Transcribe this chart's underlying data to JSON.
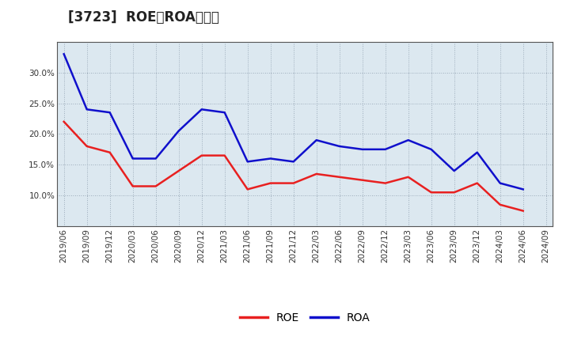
{
  "title": "[3723]  ROE、ROAの推移",
  "x_labels": [
    "2019/06",
    "2019/09",
    "2019/12",
    "2020/03",
    "2020/06",
    "2020/09",
    "2020/12",
    "2021/03",
    "2021/06",
    "2021/09",
    "2021/12",
    "2022/03",
    "2022/06",
    "2022/09",
    "2022/12",
    "2023/03",
    "2023/06",
    "2023/09",
    "2023/12",
    "2024/03",
    "2024/06",
    "2024/09"
  ],
  "roe": [
    22.0,
    18.0,
    17.0,
    11.5,
    11.5,
    14.0,
    16.5,
    16.5,
    11.0,
    12.0,
    12.0,
    13.5,
    13.0,
    12.5,
    12.0,
    13.0,
    10.5,
    10.5,
    12.0,
    8.5,
    7.5,
    null
  ],
  "roa": [
    33.0,
    24.0,
    23.5,
    16.0,
    16.0,
    20.5,
    24.0,
    23.5,
    15.5,
    16.0,
    15.5,
    19.0,
    18.0,
    17.5,
    17.5,
    19.0,
    17.5,
    14.0,
    17.0,
    12.0,
    11.0,
    null
  ],
  "roe_color": "#e82020",
  "roa_color": "#1010cc",
  "background_color": "#ffffff",
  "plot_bg_color": "#dce8f0",
  "grid_color": "#8899aa",
  "ylim": [
    5.0,
    35.0
  ],
  "yticks": [
    10.0,
    15.0,
    20.0,
    25.0,
    30.0
  ],
  "legend_labels": [
    "ROE",
    "ROA"
  ],
  "title_fontsize": 12,
  "tick_fontsize": 7.5,
  "legend_fontsize": 10
}
